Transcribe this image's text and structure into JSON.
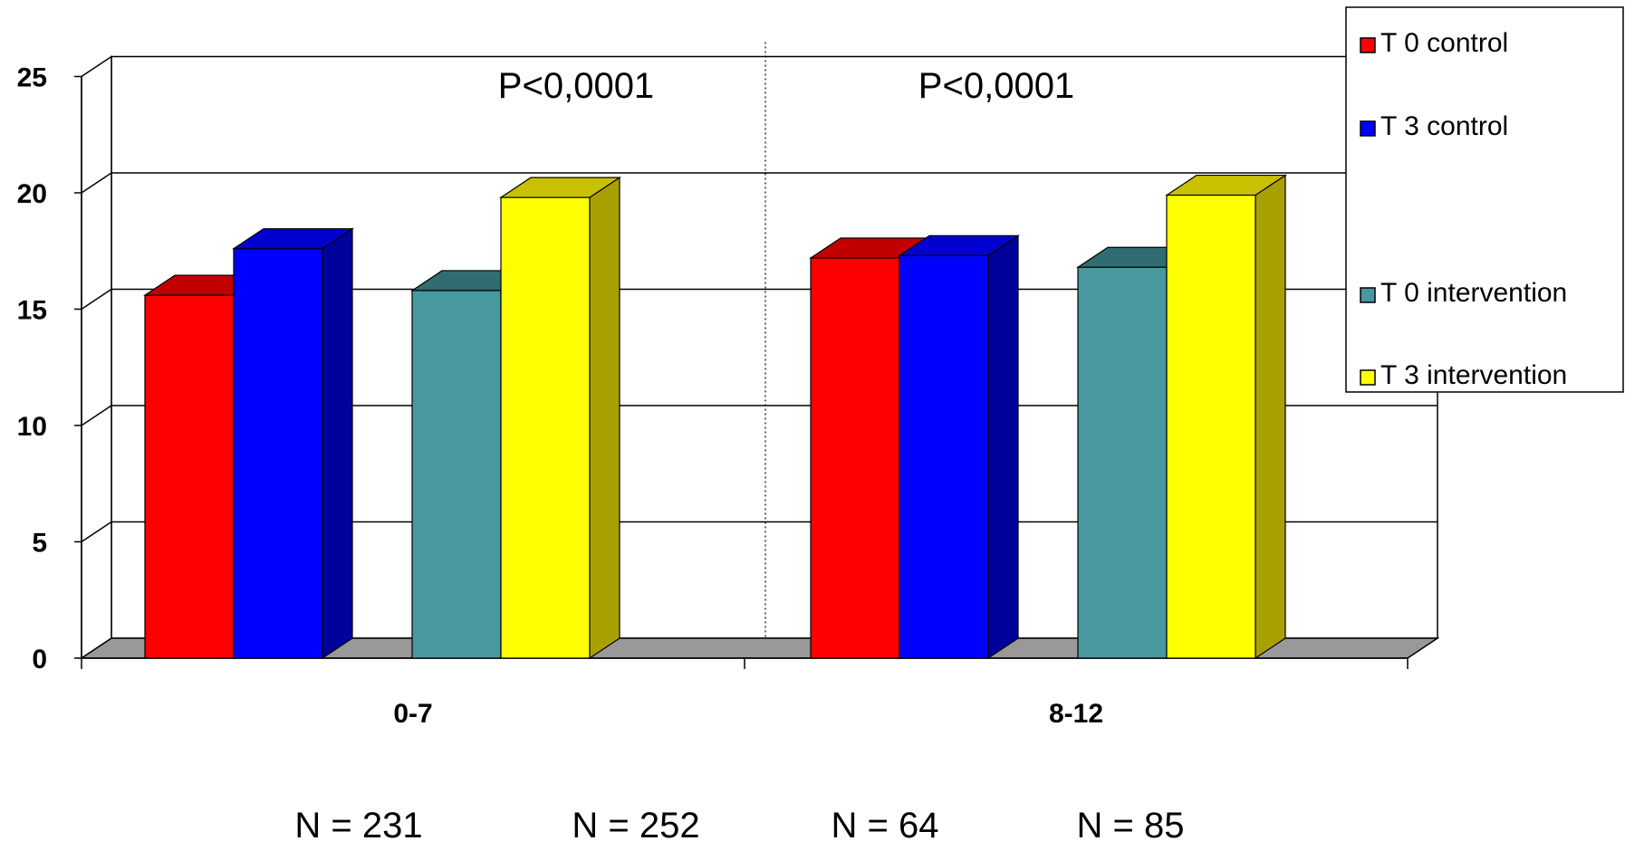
{
  "chart_data": {
    "type": "bar",
    "categories": [
      "0-7",
      "8-12"
    ],
    "series": [
      {
        "name": "T 0 control",
        "values": [
          15.6,
          17.2
        ],
        "color": "#ff0000",
        "side": "#8b0000",
        "top": "#c00000"
      },
      {
        "name": "T 3 control",
        "values": [
          17.6,
          17.3
        ],
        "color": "#0000ff",
        "side": "#00009a",
        "top": "#0000d0"
      },
      {
        "name": "T 0 intervention",
        "values": [
          15.8,
          16.8
        ],
        "color": "#4898a0",
        "side": "#1f5a60",
        "top": "#306c72"
      },
      {
        "name": "T 3 intervention",
        "values": [
          19.8,
          19.9
        ],
        "color": "#ffff00",
        "side": "#a8a000",
        "top": "#c8c000"
      }
    ],
    "ylim": [
      0,
      25
    ],
    "yticks": [
      "0",
      "5",
      "10",
      "15",
      "20",
      "25"
    ],
    "grid": true,
    "legend_position": "top-right",
    "annotations": [
      "P<0,0001",
      "P<0,0001"
    ],
    "sample_sizes": [
      "N = 231",
      "N = 252",
      "N = 64",
      "N = 85"
    ]
  }
}
